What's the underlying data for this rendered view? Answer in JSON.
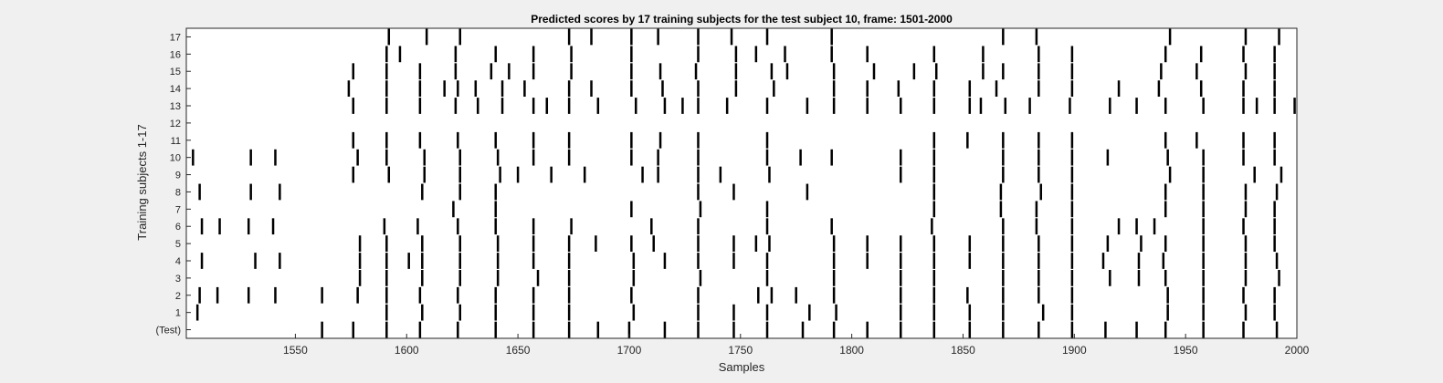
{
  "chart_data": {
    "type": "scatter",
    "title": "Predicted scores by 17 training subjects for the test subject 10, frame: 1501-2000",
    "xlabel": "Samples",
    "ylabel": "Training subjects 1-17",
    "xlim": [
      1501,
      2000
    ],
    "xticks": [
      1550,
      1600,
      1650,
      1700,
      1750,
      1800,
      1850,
      1900,
      1950,
      2000
    ],
    "grid": false,
    "legend": "none",
    "mark_color": "#000000",
    "background_color": "#ffffff",
    "rows": [
      {
        "label": "(Test)",
        "events": [
          1562,
          1576,
          1591,
          1606,
          1623,
          1640,
          1657,
          1673,
          1686,
          1700,
          1716,
          1731,
          1747,
          1762,
          1778,
          1792,
          1807,
          1822,
          1837,
          1853,
          1868,
          1884,
          1899,
          1914,
          1928,
          1941,
          1958,
          1976,
          1991
        ]
      },
      {
        "label": "1",
        "events": [
          1506,
          1591,
          1607,
          1624,
          1640,
          1657,
          1673,
          1702,
          1731,
          1747,
          1762,
          1781,
          1793,
          1822,
          1837,
          1853,
          1868,
          1886,
          1899,
          1942,
          1958,
          1977,
          1990
        ]
      },
      {
        "label": "2",
        "events": [
          1507,
          1515,
          1529,
          1541,
          1562,
          1578,
          1591,
          1606,
          1623,
          1640,
          1657,
          1673,
          1701,
          1731,
          1758,
          1764,
          1775,
          1792,
          1822,
          1837,
          1852,
          1868,
          1884,
          1899,
          1942,
          1958,
          1976,
          1990
        ]
      },
      {
        "label": "3",
        "events": [
          1579,
          1591,
          1607,
          1624,
          1641,
          1659,
          1673,
          1702,
          1732,
          1762,
          1792,
          1822,
          1837,
          1868,
          1884,
          1899,
          1916,
          1929,
          1941,
          1958,
          1977,
          1992
        ]
      },
      {
        "label": "4",
        "events": [
          1508,
          1532,
          1543,
          1579,
          1591,
          1601,
          1607,
          1624,
          1641,
          1657,
          1673,
          1702,
          1716,
          1731,
          1747,
          1762,
          1792,
          1807,
          1822,
          1837,
          1853,
          1868,
          1884,
          1899,
          1913,
          1929,
          1940,
          1958,
          1977,
          1991
        ]
      },
      {
        "label": "5",
        "events": [
          1579,
          1591,
          1607,
          1624,
          1641,
          1657,
          1673,
          1685,
          1701,
          1711,
          1731,
          1747,
          1757,
          1763,
          1792,
          1807,
          1822,
          1837,
          1853,
          1868,
          1884,
          1899,
          1915,
          1930,
          1941,
          1958,
          1977,
          1990
        ]
      },
      {
        "label": "6",
        "events": [
          1508,
          1516,
          1529,
          1540,
          1590,
          1605,
          1623,
          1640,
          1657,
          1674,
          1710,
          1731,
          1762,
          1791,
          1836,
          1868,
          1883,
          1899,
          1920,
          1928,
          1936,
          1958,
          1976,
          1990
        ]
      },
      {
        "label": "7",
        "events": [
          1621,
          1640,
          1701,
          1732,
          1762,
          1837,
          1867,
          1883,
          1899,
          1941,
          1958,
          1977,
          1990
        ]
      },
      {
        "label": "8",
        "events": [
          1507,
          1530,
          1543,
          1607,
          1624,
          1640,
          1731,
          1747,
          1780,
          1837,
          1867,
          1885,
          1899,
          1941,
          1958,
          1977,
          1991
        ]
      },
      {
        "label": "9",
        "events": [
          1576,
          1592,
          1608,
          1624,
          1642,
          1650,
          1665,
          1680,
          1706,
          1713,
          1731,
          1741,
          1763,
          1822,
          1837,
          1868,
          1884,
          1899,
          1943,
          1958,
          1981,
          1993
        ]
      },
      {
        "label": "10",
        "events": [
          1504,
          1530,
          1541,
          1578,
          1591,
          1608,
          1624,
          1641,
          1657,
          1673,
          1701,
          1713,
          1731,
          1762,
          1777,
          1791,
          1822,
          1837,
          1868,
          1884,
          1899,
          1915,
          1942,
          1958,
          1976,
          1990
        ]
      },
      {
        "label": "11",
        "events": [
          1576,
          1591,
          1606,
          1623,
          1640,
          1657,
          1673,
          1701,
          1714,
          1731,
          1762,
          1837,
          1852,
          1868,
          1884,
          1899,
          1941,
          1955,
          1976,
          1990
        ]
      },
      {
        "label": "12",
        "events": []
      },
      {
        "label": "13",
        "events": [
          1576,
          1591,
          1606,
          1622,
          1632,
          1643,
          1657,
          1663,
          1673,
          1686,
          1703,
          1716,
          1724,
          1731,
          1744,
          1762,
          1780,
          1792,
          1807,
          1822,
          1837,
          1853,
          1858,
          1869,
          1880,
          1898,
          1916,
          1928,
          1941,
          1958,
          1976,
          1982,
          1990,
          1999
        ]
      },
      {
        "label": "14",
        "events": [
          1574,
          1591,
          1606,
          1617,
          1623,
          1631,
          1643,
          1653,
          1673,
          1683,
          1701,
          1715,
          1731,
          1748,
          1765,
          1792,
          1807,
          1821,
          1837,
          1853,
          1865,
          1884,
          1899,
          1920,
          1938,
          1957,
          1976,
          1990
        ]
      },
      {
        "label": "15",
        "events": [
          1576,
          1591,
          1606,
          1622,
          1638,
          1646,
          1657,
          1674,
          1701,
          1714,
          1730,
          1748,
          1764,
          1771,
          1792,
          1810,
          1828,
          1838,
          1859,
          1868,
          1884,
          1899,
          1939,
          1955,
          1977,
          1990
        ]
      },
      {
        "label": "16",
        "events": [
          1591,
          1597,
          1622,
          1640,
          1657,
          1674,
          1701,
          1731,
          1748,
          1757,
          1770,
          1791,
          1807,
          1837,
          1859,
          1884,
          1899,
          1941,
          1957,
          1976,
          1990
        ]
      },
      {
        "label": "17",
        "events": [
          1592,
          1609,
          1624,
          1673,
          1683,
          1701,
          1713,
          1731,
          1746,
          1762,
          1791,
          1868,
          1883,
          1943,
          1977,
          1992
        ]
      }
    ]
  }
}
